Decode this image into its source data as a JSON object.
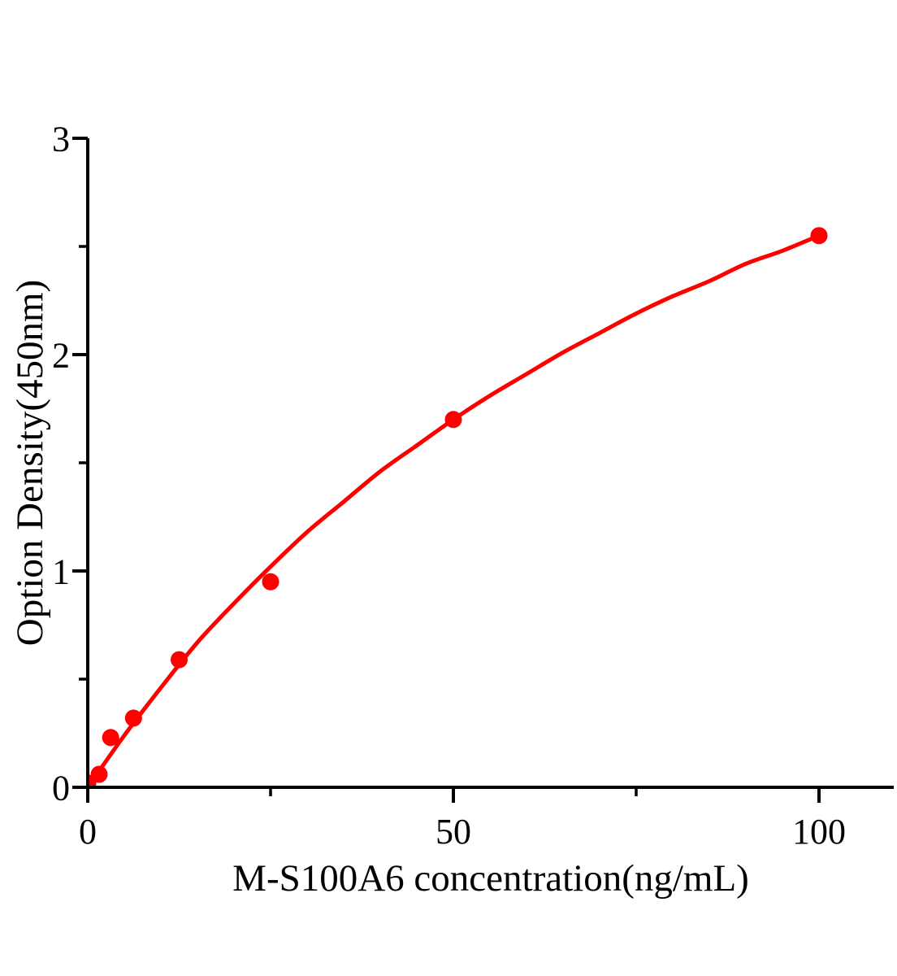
{
  "chart_data": {
    "type": "scatter",
    "title": "",
    "xlabel": "M-S100A6 concentration(ng/mL)",
    "ylabel": "Option Density(450nm)",
    "xlim": [
      0,
      110
    ],
    "ylim": [
      0,
      3
    ],
    "x_major_ticks": [
      0,
      50,
      100
    ],
    "x_minor_ticks": [
      25,
      75
    ],
    "y_major_ticks": [
      0,
      1,
      2,
      3
    ],
    "y_minor_ticks": [
      0.5,
      1.5,
      2.5
    ],
    "grid": false,
    "legend_position": "none",
    "points": {
      "x": [
        0,
        1.56,
        3.13,
        6.25,
        12.5,
        25,
        50,
        100
      ],
      "y": [
        0.02,
        0.06,
        0.23,
        0.32,
        0.59,
        0.95,
        1.7,
        2.55
      ]
    },
    "fit_curve": {
      "x": [
        0,
        5,
        10,
        15,
        20,
        25,
        30,
        35,
        40,
        45,
        50,
        55,
        60,
        65,
        70,
        75,
        80,
        85,
        90,
        95,
        100
      ],
      "y": [
        0.0,
        0.24,
        0.46,
        0.67,
        0.85,
        1.02,
        1.18,
        1.32,
        1.46,
        1.58,
        1.7,
        1.81,
        1.91,
        2.01,
        2.1,
        2.19,
        2.27,
        2.34,
        2.42,
        2.48,
        2.55
      ]
    },
    "marker_color": "#fe0000",
    "line_color": "#fe0000",
    "axis_color": "#000000"
  }
}
